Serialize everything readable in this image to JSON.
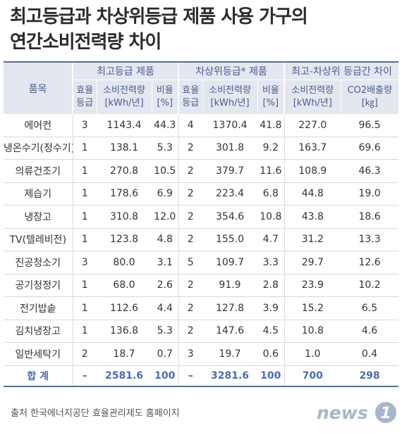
{
  "title": {
    "line1": "최고등급과 차상위등급 제품 사용 가구의",
    "line2": "연간소비전력량 차이"
  },
  "header": {
    "item": "품목",
    "group1": "최고등급 제품",
    "group2": "차상위등급* 제품",
    "group3": "최고-차상위 등급간 차이",
    "grade_top": "효율",
    "grade_bottom": "등급",
    "power_top": "소비전력량",
    "power_bottom": "[kWh/년]",
    "ratio_top": "비율",
    "ratio_bottom": "[%]",
    "co2_top": "CO2배출량",
    "co2_bottom": "[㎏]"
  },
  "rows": [
    {
      "name": "에어컨",
      "g1": "3",
      "p1": "1143.4",
      "r1": "44.3",
      "g2": "4",
      "p2": "1370.4",
      "r2": "41.8",
      "dp": "227.0",
      "co2": "96.5"
    },
    {
      "name": "냉온수기(정수기)",
      "g1": "1",
      "p1": "138.1",
      "r1": "5.3",
      "g2": "2",
      "p2": "301.8",
      "r2": "9.2",
      "dp": "163.7",
      "co2": "69.6"
    },
    {
      "name": "의류건조기",
      "g1": "1",
      "p1": "270.8",
      "r1": "10.5",
      "g2": "2",
      "p2": "379.7",
      "r2": "11.6",
      "dp": "108.9",
      "co2": "46.3"
    },
    {
      "name": "제습기",
      "g1": "1",
      "p1": "178.6",
      "r1": "6.9",
      "g2": "2",
      "p2": "223.4",
      "r2": "6.8",
      "dp": "44.8",
      "co2": "19.0"
    },
    {
      "name": "냉장고",
      "g1": "1",
      "p1": "310.8",
      "r1": "12.0",
      "g2": "2",
      "p2": "354.6",
      "r2": "10.8",
      "dp": "43.8",
      "co2": "18.6"
    },
    {
      "name": "TV(텔레비전)",
      "g1": "1",
      "p1": "123.8",
      "r1": "4.8",
      "g2": "2",
      "p2": "155.0",
      "r2": "4.7",
      "dp": "31.2",
      "co2": "13.3"
    },
    {
      "name": "진공청소기",
      "g1": "3",
      "p1": "80.0",
      "r1": "3.1",
      "g2": "5",
      "p2": "109.7",
      "r2": "3.3",
      "dp": "29.7",
      "co2": "12.6"
    },
    {
      "name": "공기청정기",
      "g1": "1",
      "p1": "68.0",
      "r1": "2.6",
      "g2": "2",
      "p2": "91.9",
      "r2": "2.8",
      "dp": "23.9",
      "co2": "10.2"
    },
    {
      "name": "전기밥솥",
      "g1": "1",
      "p1": "112.6",
      "r1": "4.4",
      "g2": "2",
      "p2": "127.8",
      "r2": "3.9",
      "dp": "15.2",
      "co2": "6.5"
    },
    {
      "name": "김치냉장고",
      "g1": "1",
      "p1": "136.8",
      "r1": "5.3",
      "g2": "2",
      "p2": "147.6",
      "r2": "4.5",
      "dp": "10.8",
      "co2": "4.6"
    },
    {
      "name": "일반세탁기",
      "g1": "2",
      "p1": "18.7",
      "r1": "0.7",
      "g2": "3",
      "p2": "19.7",
      "r2": "0.6",
      "dp": "1.0",
      "co2": "0.4"
    }
  ],
  "total": {
    "name": "합 계",
    "g1": "–",
    "p1": "2581.6",
    "r1": "100",
    "g2": "–",
    "p2": "3281.6",
    "r2": "100",
    "dp": "700",
    "co2": "298"
  },
  "source": "출처  한국에너지공단 효율관리제도 홈페이지",
  "logo": {
    "text": "news",
    "badge": "1",
    "color": "#a9b6c8"
  }
}
